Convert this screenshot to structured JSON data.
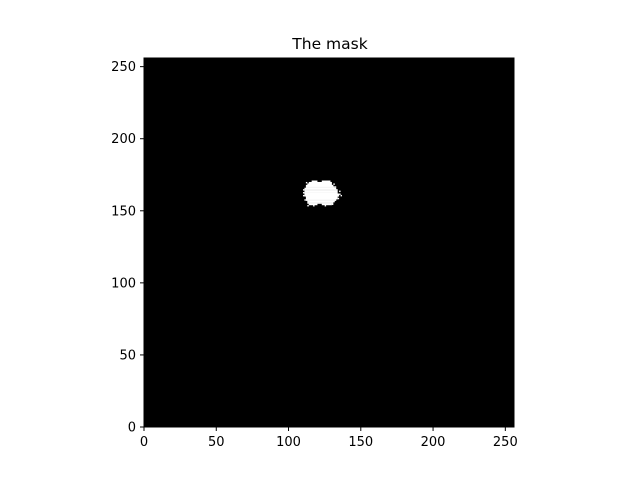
{
  "chart_data": {
    "type": "heatmap",
    "title": "The mask",
    "xlabel": "",
    "ylabel": "",
    "xlim": [
      0,
      256
    ],
    "ylim": [
      0,
      256
    ],
    "xticks": [
      0,
      50,
      100,
      150,
      200,
      250
    ],
    "yticks": [
      0,
      50,
      100,
      150,
      200,
      250
    ],
    "xtick_labels": [
      "0",
      "50",
      "100",
      "150",
      "200",
      "250"
    ],
    "ytick_labels": [
      "0",
      "50",
      "100",
      "150",
      "200",
      "250"
    ],
    "grid": false,
    "colormap": {
      "0": "#000000",
      "1": "#ffffff"
    },
    "background_value": 0,
    "mask_region": {
      "value": 1,
      "description_units": "pixel indices",
      "rows": [
        {
          "y": 170,
          "x": [
            116,
            119,
            123,
            128
          ]
        },
        {
          "y": 169,
          "x": [
            114,
            129
          ]
        },
        {
          "y": 168,
          "x": [
            113,
            129
          ]
        },
        {
          "y": 167,
          "x": [
            112,
            130
          ]
        },
        {
          "y": 166,
          "x": [
            112,
            131
          ]
        },
        {
          "y": 165,
          "x": [
            111,
            132
          ]
        },
        {
          "y": 164,
          "x": [
            111,
            133
          ]
        },
        {
          "y": 163,
          "x": [
            111,
            133
          ]
        },
        {
          "y": 162,
          "x": [
            111,
            133
          ]
        },
        {
          "y": 161,
          "x": [
            111,
            134
          ]
        },
        {
          "y": 160,
          "x": [
            111,
            134
          ]
        },
        {
          "y": 159,
          "x": [
            112,
            133
          ]
        },
        {
          "y": 158,
          "x": [
            112,
            133
          ]
        },
        {
          "y": 157,
          "x": [
            112,
            132
          ]
        },
        {
          "y": 156,
          "x": [
            113,
            131
          ]
        },
        {
          "y": 155,
          "x": [
            113,
            130
          ]
        },
        {
          "y": 154,
          "x": [
            114,
            119,
            123,
            129
          ]
        }
      ]
    }
  }
}
